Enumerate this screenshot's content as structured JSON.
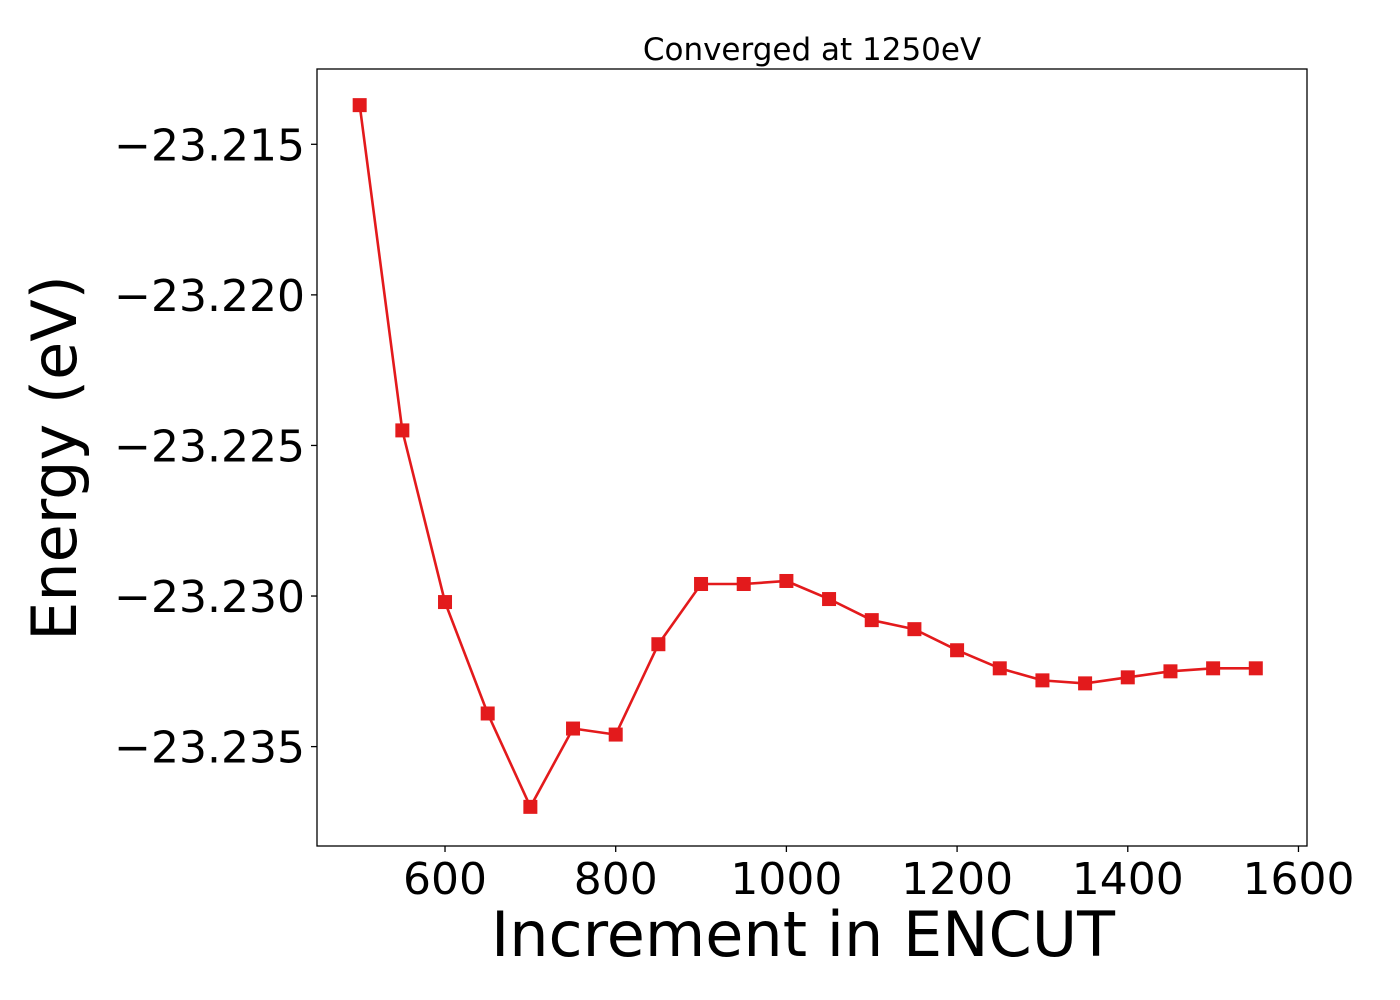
{
  "chart_data": {
    "type": "line",
    "title": "Converged at 1250eV",
    "xlabel": "Increment in ENCUT",
    "ylabel": "Energy (eV)",
    "xlim": [
      450,
      1610
    ],
    "ylim": [
      -23.2383,
      -23.2125
    ],
    "xticks": [
      600,
      800,
      1000,
      1200,
      1400,
      1600
    ],
    "xtick_labels": [
      "600",
      "800",
      "1000",
      "1200",
      "1400",
      "1600"
    ],
    "yticks": [
      -23.215,
      -23.22,
      -23.225,
      -23.23,
      -23.235
    ],
    "ytick_labels": [
      "−23.215",
      "−23.220",
      "−23.225",
      "−23.230",
      "−23.235"
    ],
    "grid": false,
    "series": [
      {
        "color": "#e31a1c",
        "marker": "square",
        "x": [
          500,
          550,
          600,
          650,
          700,
          750,
          800,
          850,
          900,
          950,
          1000,
          1050,
          1100,
          1150,
          1200,
          1250,
          1300,
          1350,
          1400,
          1450,
          1500,
          1550
        ],
        "y": [
          -23.2137,
          -23.2245,
          -23.2302,
          -23.2339,
          -23.237,
          -23.2344,
          -23.2346,
          -23.2316,
          -23.2296,
          -23.2296,
          -23.2295,
          -23.2301,
          -23.2308,
          -23.2311,
          -23.2318,
          -23.2324,
          -23.2328,
          -23.2329,
          -23.2327,
          -23.2325,
          -23.2324,
          -23.2324
        ]
      }
    ]
  }
}
